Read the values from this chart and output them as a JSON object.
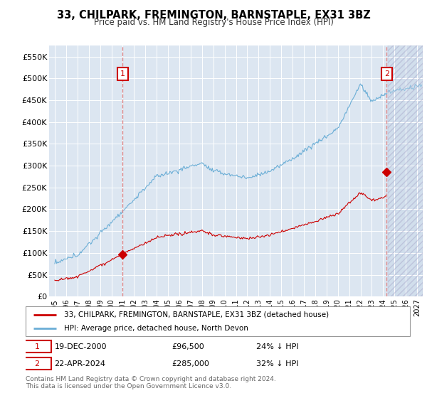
{
  "title": "33, CHILPARK, FREMINGTON, BARNSTAPLE, EX31 3BZ",
  "subtitle": "Price paid vs. HM Land Registry's House Price Index (HPI)",
  "ylim": [
    0,
    575000
  ],
  "yticks": [
    0,
    50000,
    100000,
    150000,
    200000,
    250000,
    300000,
    350000,
    400000,
    450000,
    500000,
    550000
  ],
  "ytick_labels": [
    "£0",
    "£50K",
    "£100K",
    "£150K",
    "£200K",
    "£250K",
    "£300K",
    "£350K",
    "£400K",
    "£450K",
    "£500K",
    "£550K"
  ],
  "xlim_start": 1994.5,
  "xlim_end": 2027.5,
  "hpi_color": "#6baed6",
  "price_color": "#cc0000",
  "background_color": "#dce6f1",
  "grid_color": "#ffffff",
  "vline_color": "#e08080",
  "annotation_box_color": "#cc0000",
  "legend_label_red": "33, CHILPARK, FREMINGTON, BARNSTAPLE, EX31 3BZ (detached house)",
  "legend_label_blue": "HPI: Average price, detached house, North Devon",
  "transaction1_date": "19-DEC-2000",
  "transaction1_price": "£96,500",
  "transaction1_pct": "24% ↓ HPI",
  "transaction1_year": 2001.0,
  "transaction1_value": 96500,
  "transaction2_date": "22-APR-2024",
  "transaction2_price": "£285,000",
  "transaction2_pct": "32% ↓ HPI",
  "transaction2_year": 2024.31,
  "transaction2_value": 285000,
  "footer_line1": "Contains HM Land Registry data © Crown copyright and database right 2024.",
  "footer_line2": "This data is licensed under the Open Government Licence v3.0.",
  "hatch_region_start": 2024.4,
  "hatch_region_end": 2027.5
}
